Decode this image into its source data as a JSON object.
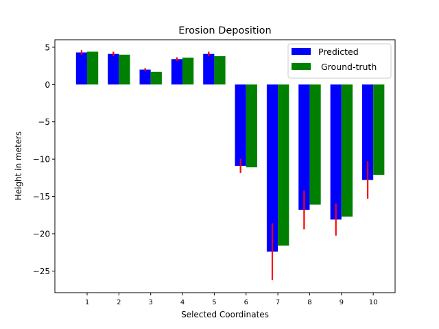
{
  "chart_data": {
    "type": "bar",
    "title": "Erosion Deposition",
    "xlabel": "Selected Coordinates",
    "ylabel": "Height in meters",
    "categories": [
      "1",
      "2",
      "3",
      "4",
      "5",
      "6",
      "7",
      "8",
      "9",
      "10"
    ],
    "series": [
      {
        "name": "Predicted",
        "color": "#0000ff",
        "values": [
          4.3,
          4.1,
          2.0,
          3.4,
          4.1,
          -10.9,
          -22.4,
          -16.8,
          -18.1,
          -12.8
        ],
        "error": [
          0.3,
          0.3,
          0.2,
          0.25,
          0.3,
          0.95,
          3.8,
          2.6,
          2.15,
          2.5
        ],
        "error_color": "#ff0000"
      },
      {
        "name": " Ground-truth",
        "color": "#008000",
        "values": [
          4.4,
          4.0,
          1.7,
          3.6,
          3.8,
          -11.1,
          -21.6,
          -16.1,
          -17.7,
          -12.1
        ]
      }
    ],
    "ylim": [
      -27.9,
      6.0
    ],
    "yticks": [
      5,
      0,
      -5,
      -10,
      -15,
      -20,
      -25
    ],
    "ytick_labels": [
      "5",
      "0",
      "−5",
      "−10",
      "−15",
      "−20",
      "−25"
    ],
    "legend_position": "top-right",
    "grid": false
  }
}
